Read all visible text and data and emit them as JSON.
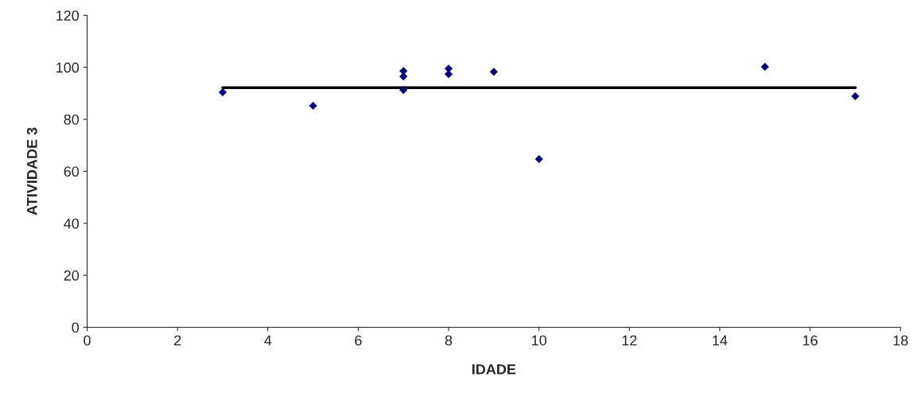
{
  "chart_data": {
    "type": "scatter",
    "xlabel": "IDADE",
    "ylabel": "ATIVIDADE 3",
    "xlim": [
      0,
      18
    ],
    "xticks": [
      0,
      2,
      4,
      6,
      8,
      10,
      12,
      14,
      16,
      18
    ],
    "ylim": [
      0,
      120
    ],
    "yticks": [
      0,
      20,
      40,
      60,
      80,
      100,
      120
    ],
    "grid": false,
    "series": [
      {
        "color": "#000080",
        "marker": "diamond",
        "x": [
          3,
          5,
          7,
          7,
          7,
          8,
          8,
          9,
          10,
          15,
          17
        ],
        "values": [
          90.4,
          85.2,
          98.6,
          96.5,
          91.3,
          99.5,
          97.4,
          98.3,
          64.7,
          100.2,
          88.9
        ]
      },
      {
        "type": "line",
        "color": "#000000",
        "marker": "none",
        "line_style": "solid",
        "x": [
          3,
          17
        ],
        "values": [
          92.2,
          92.2
        ]
      }
    ]
  }
}
